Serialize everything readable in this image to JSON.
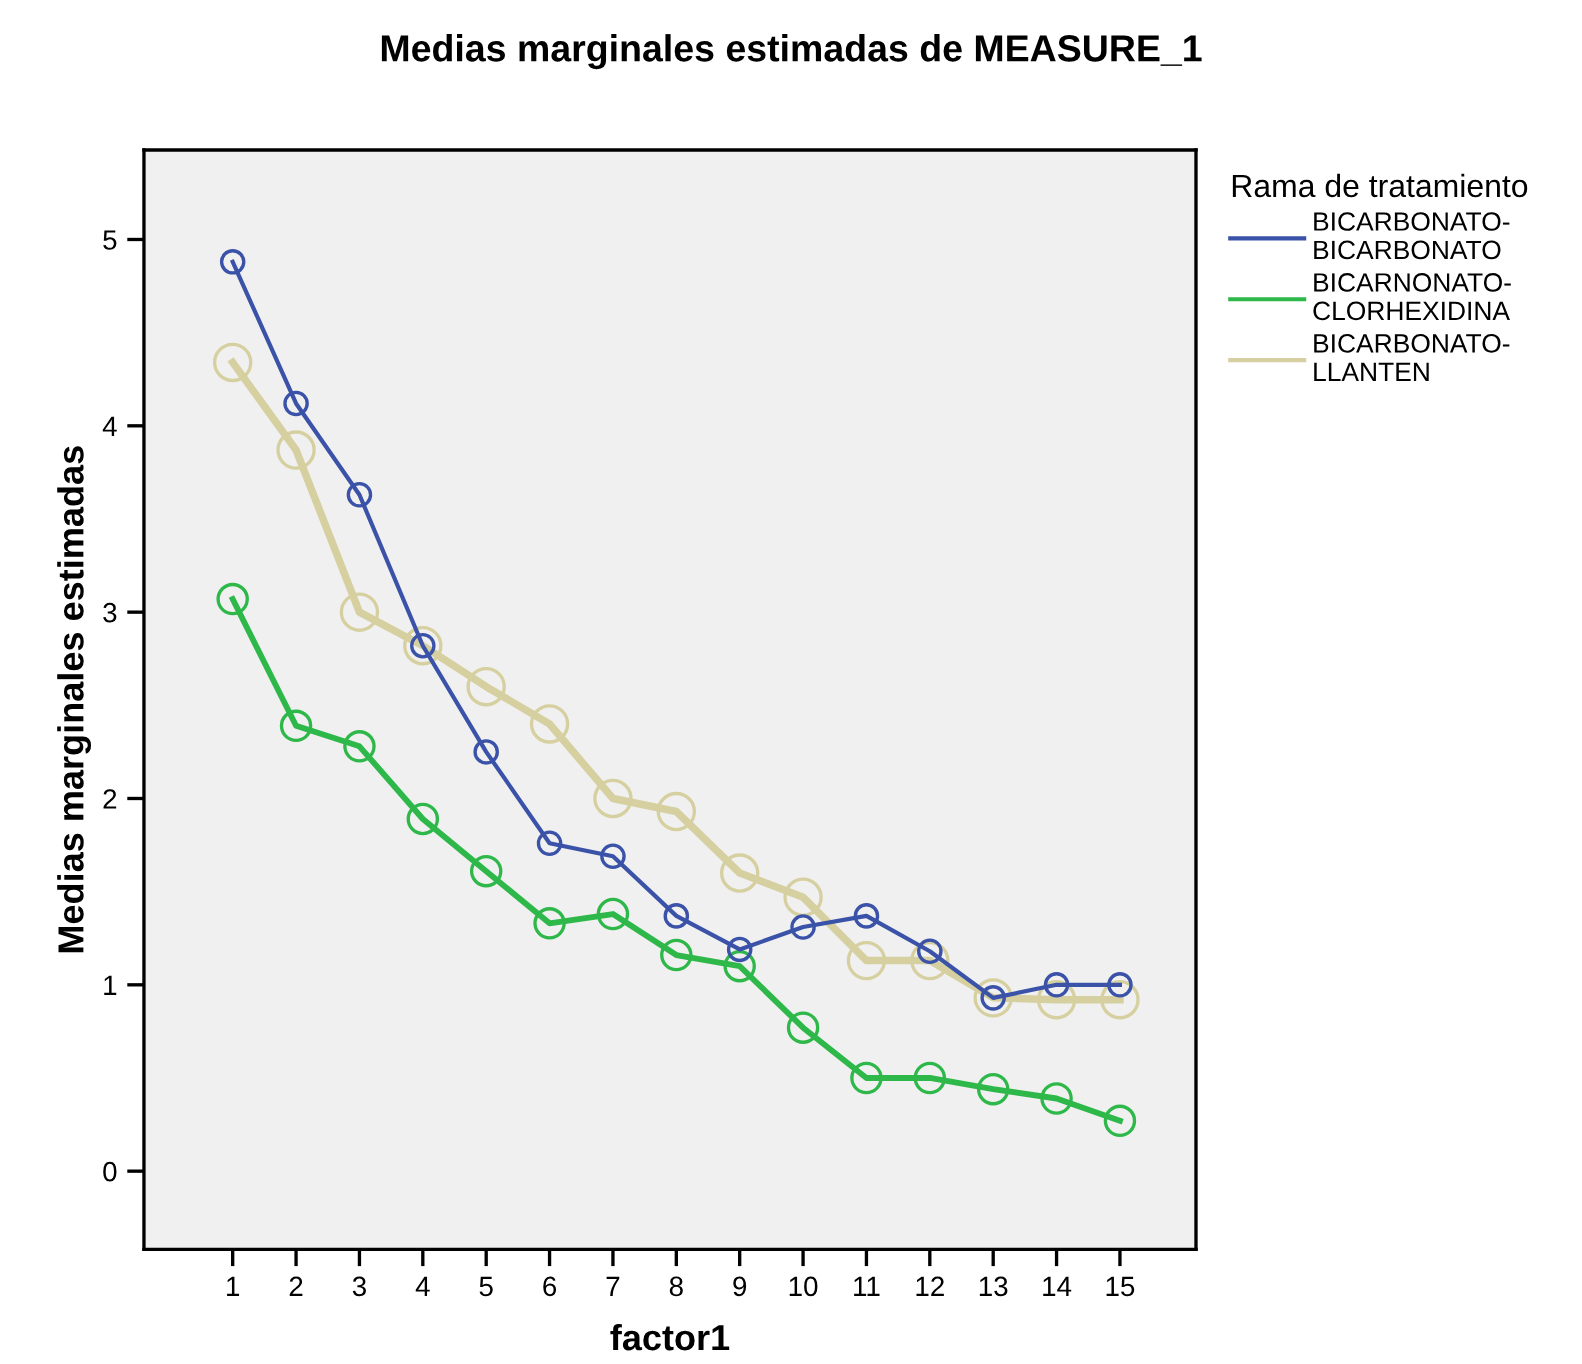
{
  "chart_data": {
    "type": "line",
    "title": "Medias marginales estimadas de MEASURE_1",
    "xlabel": "factor1",
    "ylabel": "Medias marginales estimadas",
    "legend_title": "Rama de tratamiento",
    "legend": "right",
    "marker": "circle",
    "line_style": "solid",
    "grid": false,
    "x": [
      1,
      2,
      3,
      4,
      5,
      6,
      7,
      8,
      9,
      10,
      11,
      12,
      13,
      14,
      15
    ],
    "xlim": [
      -0.4,
      16.2
    ],
    "xticks": [
      1,
      2,
      3,
      4,
      5,
      6,
      7,
      8,
      9,
      10,
      11,
      12,
      13,
      14,
      15
    ],
    "ylim": [
      -0.42,
      5.48
    ],
    "yticks": [
      0,
      1,
      2,
      3,
      4,
      5
    ],
    "series": [
      {
        "name": "BICARBONATO-\nBICARBONATO",
        "color": "#3a52a8",
        "values": [
          4.88,
          4.12,
          3.63,
          2.82,
          2.25,
          1.76,
          1.69,
          1.37,
          1.19,
          1.31,
          1.37,
          1.18,
          0.93,
          1.0,
          1.0
        ]
      },
      {
        "name": "BICARNONATO-\nCLORHEXIDINA",
        "color": "#2eb84a",
        "values": [
          3.07,
          2.39,
          2.28,
          1.89,
          1.61,
          1.33,
          1.38,
          1.16,
          1.1,
          0.77,
          0.5,
          0.5,
          0.44,
          0.39,
          0.27
        ]
      },
      {
        "name": "BICARBONATO-\nLLANTEN",
        "color": "#d6d0a0",
        "values": [
          4.34,
          3.87,
          3.0,
          2.82,
          2.6,
          2.4,
          2.0,
          1.93,
          1.6,
          1.47,
          1.13,
          1.13,
          0.93,
          0.92,
          0.92
        ]
      }
    ]
  }
}
